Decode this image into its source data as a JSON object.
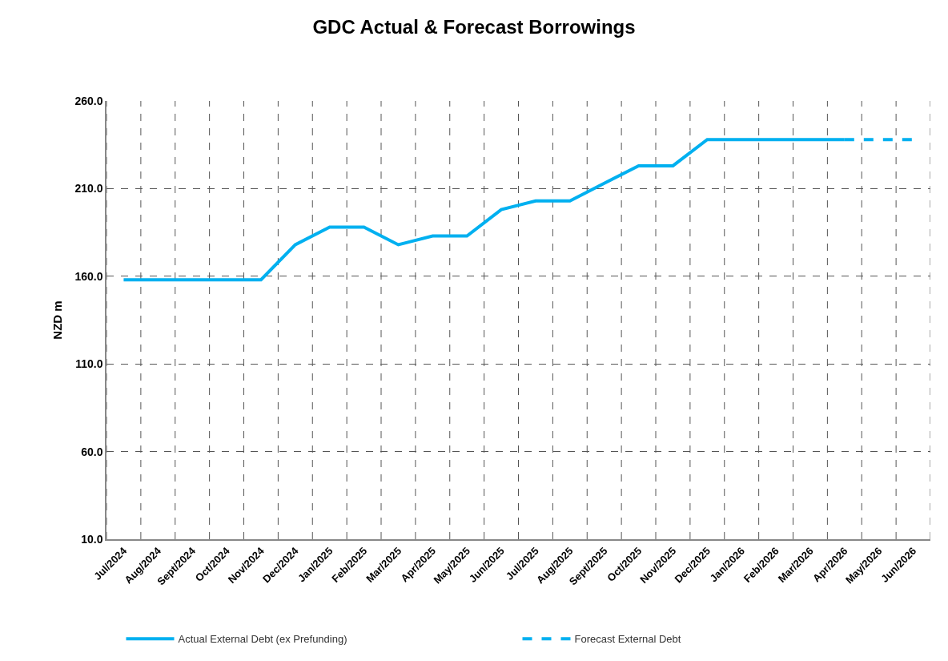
{
  "chart_data": {
    "type": "line",
    "title": "GDC Actual & Forecast Borrowings",
    "ylabel": "NZD m",
    "categories": [
      "Jul/2024",
      "Aug/2024",
      "Sept/2024",
      "Oct/2024",
      "Nov/2024",
      "Dec/2024",
      "Jan/2025",
      "Feb/2025",
      "Mar/2025",
      "Apr/2025",
      "May/2025",
      "Jun/2025",
      "Jul/2025",
      "Aug/2025",
      "Sept/2025",
      "Oct/2025",
      "Nov/2025",
      "Dec/2025",
      "Jan/2026",
      "Feb/2026",
      "Mar/2026",
      "Apr/2026",
      "May/2026",
      "Jun/2026"
    ],
    "series": [
      {
        "name": "Actual External Debt (ex Prefunding)",
        "color": "#00b0f0",
        "line_style": "solid",
        "values": [
          158,
          158,
          158,
          158,
          158,
          178,
          188,
          188,
          178,
          183,
          183,
          198,
          203,
          203,
          213,
          223,
          223,
          238,
          238,
          238,
          238,
          238,
          null,
          null
        ]
      },
      {
        "name": "Forecast External Debt",
        "color": "#00b0f0",
        "line_style": "dashed",
        "values": [
          null,
          null,
          null,
          null,
          null,
          null,
          null,
          null,
          null,
          null,
          null,
          null,
          null,
          null,
          null,
          null,
          null,
          null,
          null,
          null,
          null,
          238,
          238,
          238
        ]
      }
    ],
    "ylim": [
      10,
      260
    ],
    "yticks": [
      {
        "value": 10,
        "label": "10.0"
      },
      {
        "value": 60,
        "label": "60.0"
      },
      {
        "value": 110,
        "label": "110.0"
      },
      {
        "value": 160,
        "label": "160.0"
      },
      {
        "value": 210,
        "label": "210.0"
      },
      {
        "value": 260,
        "label": "260.0"
      }
    ],
    "grid": true,
    "legend": "bottom",
    "marker": "none"
  }
}
